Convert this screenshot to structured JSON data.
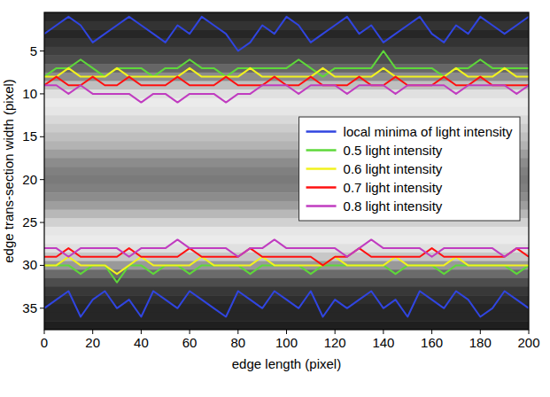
{
  "chart_data": {
    "type": "line",
    "x_label": "edge length (pixel)",
    "y_label": "edge trans-section width (pixel)",
    "x": [
      0,
      5,
      10,
      15,
      20,
      25,
      30,
      35,
      40,
      45,
      50,
      55,
      60,
      65,
      70,
      75,
      80,
      85,
      90,
      95,
      100,
      105,
      110,
      115,
      120,
      125,
      130,
      135,
      140,
      145,
      150,
      155,
      160,
      165,
      170,
      175,
      180,
      185,
      190,
      195,
      200
    ],
    "xlim": [
      0,
      200
    ],
    "xticks": [
      0,
      20,
      40,
      60,
      80,
      100,
      120,
      140,
      160,
      180,
      200
    ],
    "ylim": [
      37.5,
      0.5
    ],
    "yticks": [
      5,
      10,
      15,
      20,
      25,
      30,
      35
    ],
    "legend": "right",
    "background_rows": [
      1,
      2,
      3,
      4,
      5,
      6,
      7,
      8,
      9,
      10,
      11,
      12,
      13,
      14,
      15,
      16,
      17,
      18,
      19,
      20,
      21,
      22,
      23,
      24,
      25,
      26,
      27,
      28,
      29,
      30,
      31,
      32,
      33,
      34,
      35,
      36,
      37
    ],
    "background_intensity": [
      0.15,
      0.2,
      0.15,
      0.2,
      0.25,
      0.3,
      0.4,
      0.55,
      0.75,
      0.88,
      0.92,
      0.9,
      0.85,
      0.8,
      0.75,
      0.7,
      0.62,
      0.55,
      0.5,
      0.48,
      0.5,
      0.55,
      0.62,
      0.72,
      0.82,
      0.9,
      0.92,
      0.88,
      0.78,
      0.6,
      0.42,
      0.3,
      0.22,
      0.18,
      0.15,
      0.15,
      0.12
    ],
    "series": [
      {
        "name": "local minima of light intensity",
        "color": "#3045e0",
        "values": [
          3,
          2,
          1,
          2,
          4,
          3,
          2,
          1,
          2,
          3,
          4,
          2,
          3,
          1,
          2,
          3,
          5,
          4,
          2,
          3,
          1,
          2,
          4,
          3,
          2,
          1,
          3,
          2,
          4,
          3,
          2,
          1,
          3,
          4,
          2,
          3,
          1,
          2,
          3,
          2,
          1
        ],
        "lower_values": [
          35,
          34,
          33,
          36,
          34,
          33,
          35,
          34,
          36,
          33,
          34,
          35,
          33,
          34,
          35,
          36,
          33,
          34,
          35,
          33,
          34,
          35,
          33,
          36,
          34,
          35,
          34,
          33,
          35,
          34,
          36,
          33,
          34,
          35,
          33,
          34,
          36,
          35,
          33,
          34,
          35
        ]
      },
      {
        "name": "0.5 light intensity",
        "color": "#5ed83a",
        "values": [
          8,
          7,
          7,
          6,
          7,
          8,
          7,
          7,
          7,
          8,
          7,
          7,
          6,
          7,
          7,
          8,
          7,
          7,
          7,
          7,
          7,
          6,
          7,
          8,
          7,
          7,
          7,
          7,
          5,
          7,
          7,
          7,
          7,
          8,
          7,
          7,
          6,
          7,
          7,
          7,
          7
        ],
        "lower_values": [
          30,
          30,
          30,
          31,
          30,
          30,
          32,
          30,
          30,
          31,
          30,
          30,
          31,
          30,
          30,
          30,
          30,
          31,
          30,
          30,
          30,
          30,
          31,
          30,
          30,
          30,
          30,
          30,
          30,
          31,
          30,
          30,
          30,
          31,
          30,
          30,
          30,
          30,
          30,
          31,
          30
        ]
      },
      {
        "name": "0.6 light intensity",
        "color": "#f2f21e",
        "values": [
          8,
          8,
          7,
          8,
          8,
          8,
          7,
          8,
          8,
          8,
          8,
          8,
          7,
          8,
          8,
          8,
          8,
          7,
          8,
          8,
          8,
          8,
          8,
          7,
          8,
          8,
          8,
          8,
          7,
          8,
          8,
          8,
          8,
          8,
          7,
          8,
          8,
          8,
          7,
          8,
          8
        ],
        "lower_values": [
          30,
          30,
          29,
          30,
          30,
          30,
          31,
          30,
          29,
          30,
          30,
          30,
          30,
          29,
          30,
          30,
          30,
          30,
          29,
          30,
          30,
          30,
          30,
          30,
          29,
          30,
          30,
          30,
          30,
          29,
          30,
          30,
          30,
          30,
          29,
          30,
          30,
          30,
          30,
          30,
          30
        ]
      },
      {
        "name": "0.7 light intensity",
        "color": "#ff1010",
        "values": [
          9,
          8,
          9,
          9,
          8,
          9,
          9,
          8,
          9,
          9,
          9,
          8,
          9,
          9,
          9,
          8,
          9,
          9,
          9,
          8,
          9,
          9,
          8,
          9,
          9,
          9,
          8,
          9,
          9,
          8,
          9,
          9,
          9,
          8,
          9,
          9,
          8,
          9,
          9,
          9,
          9
        ],
        "lower_values": [
          29,
          29,
          28,
          29,
          29,
          29,
          29,
          28,
          29,
          29,
          29,
          29,
          28,
          29,
          29,
          29,
          29,
          28,
          29,
          29,
          29,
          29,
          29,
          30,
          29,
          29,
          28,
          29,
          29,
          29,
          29,
          29,
          28,
          29,
          29,
          29,
          29,
          29,
          29,
          28,
          29
        ]
      },
      {
        "name": "0.8 light intensity",
        "color": "#c03cc0",
        "values": [
          9,
          9,
          10,
          9,
          10,
          10,
          10,
          10,
          11,
          10,
          10,
          11,
          10,
          10,
          10,
          11,
          10,
          10,
          9,
          9,
          9,
          10,
          9,
          9,
          9,
          10,
          9,
          9,
          9,
          10,
          9,
          9,
          9,
          9,
          10,
          9,
          9,
          9,
          9,
          10,
          9
        ],
        "lower_values": [
          28,
          28,
          29,
          28,
          28,
          28,
          28,
          29,
          28,
          28,
          28,
          27,
          28,
          28,
          28,
          28,
          29,
          28,
          28,
          27,
          28,
          28,
          28,
          28,
          28,
          29,
          28,
          27,
          28,
          28,
          28,
          28,
          29,
          28,
          28,
          28,
          28,
          28,
          29,
          28,
          28
        ]
      }
    ]
  }
}
